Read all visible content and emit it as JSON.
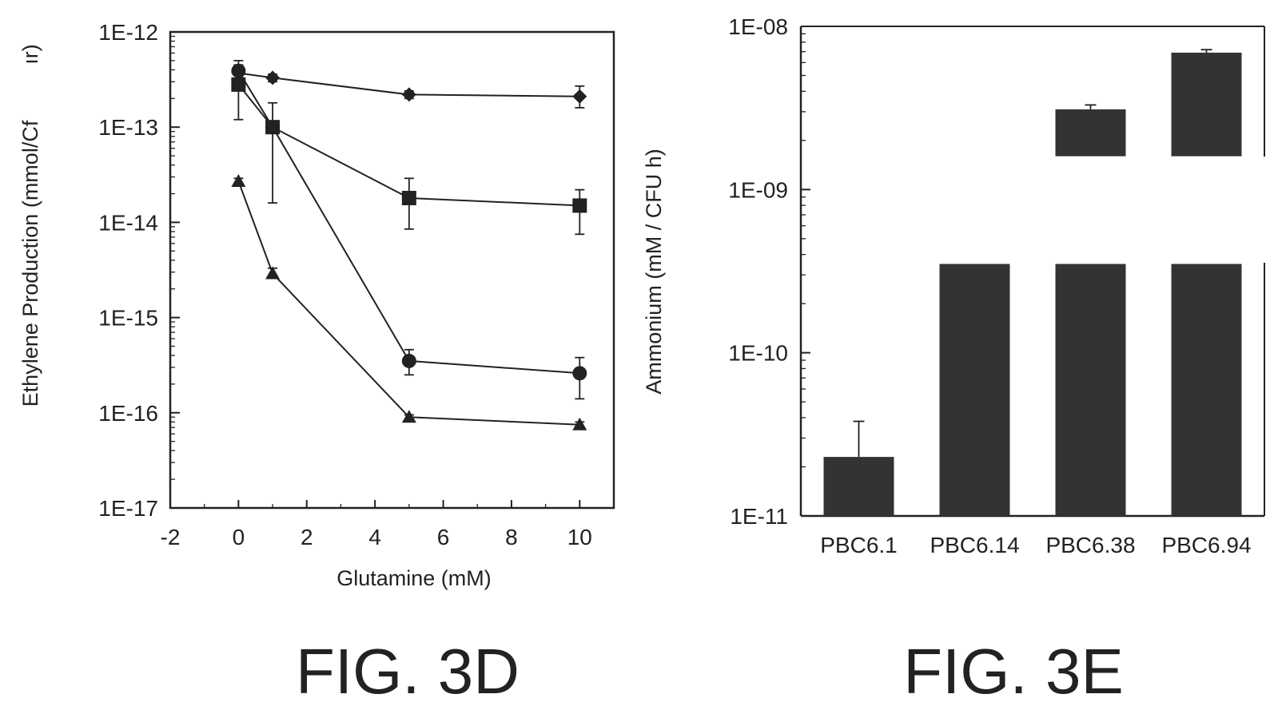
{
  "colors": {
    "ink": "#222222",
    "bar": "#333333",
    "background": "#ffffff"
  },
  "chart_data": [
    {
      "type": "line",
      "figure_label": "FIG. 3D",
      "xlabel": "Glutamine (mM)",
      "ylabel": "Ethylene Production (mmol/CFU hr)",
      "ylabel_visible": "Ethylene Production (mmol/Cf",
      "ylabel_fragment": "ır)",
      "xlim": [
        -2,
        11
      ],
      "x_ticks": [
        -2,
        0,
        2,
        4,
        6,
        8,
        10
      ],
      "x_tick_labels": [
        "-2",
        "0",
        "2",
        "4",
        "6",
        "8",
        "10"
      ],
      "y_scale": "log",
      "ylim": [
        1e-17,
        1e-12
      ],
      "y_ticks": [
        1e-17,
        1e-16,
        1e-15,
        1e-14,
        1e-13,
        1e-12
      ],
      "y_tick_labels": [
        "1E-17",
        "1E-16",
        "1E-15",
        "1E-14",
        "1E-13",
        "1E-12"
      ],
      "grid": false,
      "series": [
        {
          "marker": "diamond",
          "x": [
            0,
            1,
            5,
            10
          ],
          "y": [
            3.7e-13,
            3.3e-13,
            2.2e-13,
            2.1e-13
          ],
          "err_low": [
            3e-13,
            3e-13,
            2e-13,
            1.6e-13
          ],
          "err_high": [
            4.5e-13,
            3.6e-13,
            2.4e-13,
            2.7e-13
          ]
        },
        {
          "marker": "square",
          "x": [
            0,
            1,
            5,
            10
          ],
          "y": [
            2.8e-13,
            1e-13,
            1.8e-14,
            1.5e-14
          ],
          "err_low": [
            1.2e-13,
            1.6e-14,
            8.5e-15,
            7.5e-15
          ],
          "err_high": [
            4.5e-13,
            1.8e-13,
            2.9e-14,
            2.2e-14
          ]
        },
        {
          "marker": "circle",
          "x": [
            0,
            1,
            5,
            10
          ],
          "y": [
            3.9e-13,
            1e-13,
            3.5e-16,
            2.6e-16
          ],
          "err_low": [
            3e-13,
            9e-14,
            2.5e-16,
            1.4e-16
          ],
          "err_high": [
            5e-13,
            1.1e-13,
            4.6e-16,
            3.8e-16
          ]
        },
        {
          "marker": "triangle",
          "x": [
            0,
            1,
            5,
            10
          ],
          "y": [
            2.7e-14,
            2.9e-15,
            9e-17,
            7.5e-17
          ],
          "err_low": [
            2.5e-14,
            2.6e-15,
            8.5e-17,
            7e-17
          ],
          "err_high": [
            2.9e-14,
            3.3e-15,
            9.5e-17,
            8e-17
          ]
        }
      ]
    },
    {
      "type": "bar",
      "figure_label": "FIG. 3E",
      "ylabel": "Ammonium (mM / CFU h)",
      "y_scale": "log",
      "ylim": [
        1e-11,
        1e-08
      ],
      "y_ticks": [
        1e-11,
        1e-10,
        1e-09,
        1e-08
      ],
      "y_tick_labels": [
        "1E-11",
        "1E-10",
        "1E-09",
        "1E-08"
      ],
      "categories": [
        "PBC6.1",
        "PBC6.14",
        "PBC6.38",
        "PBC6.94"
      ],
      "values": [
        2.3e-11,
        3.5e-10,
        3.1e-09,
        6.9e-09
      ],
      "err_high": [
        3.8e-11,
        null,
        3.3e-09,
        7.2e-09
      ],
      "axis_break": {
        "from": 3.5e-10,
        "to": 1.6e-09
      },
      "grid": false
    }
  ]
}
